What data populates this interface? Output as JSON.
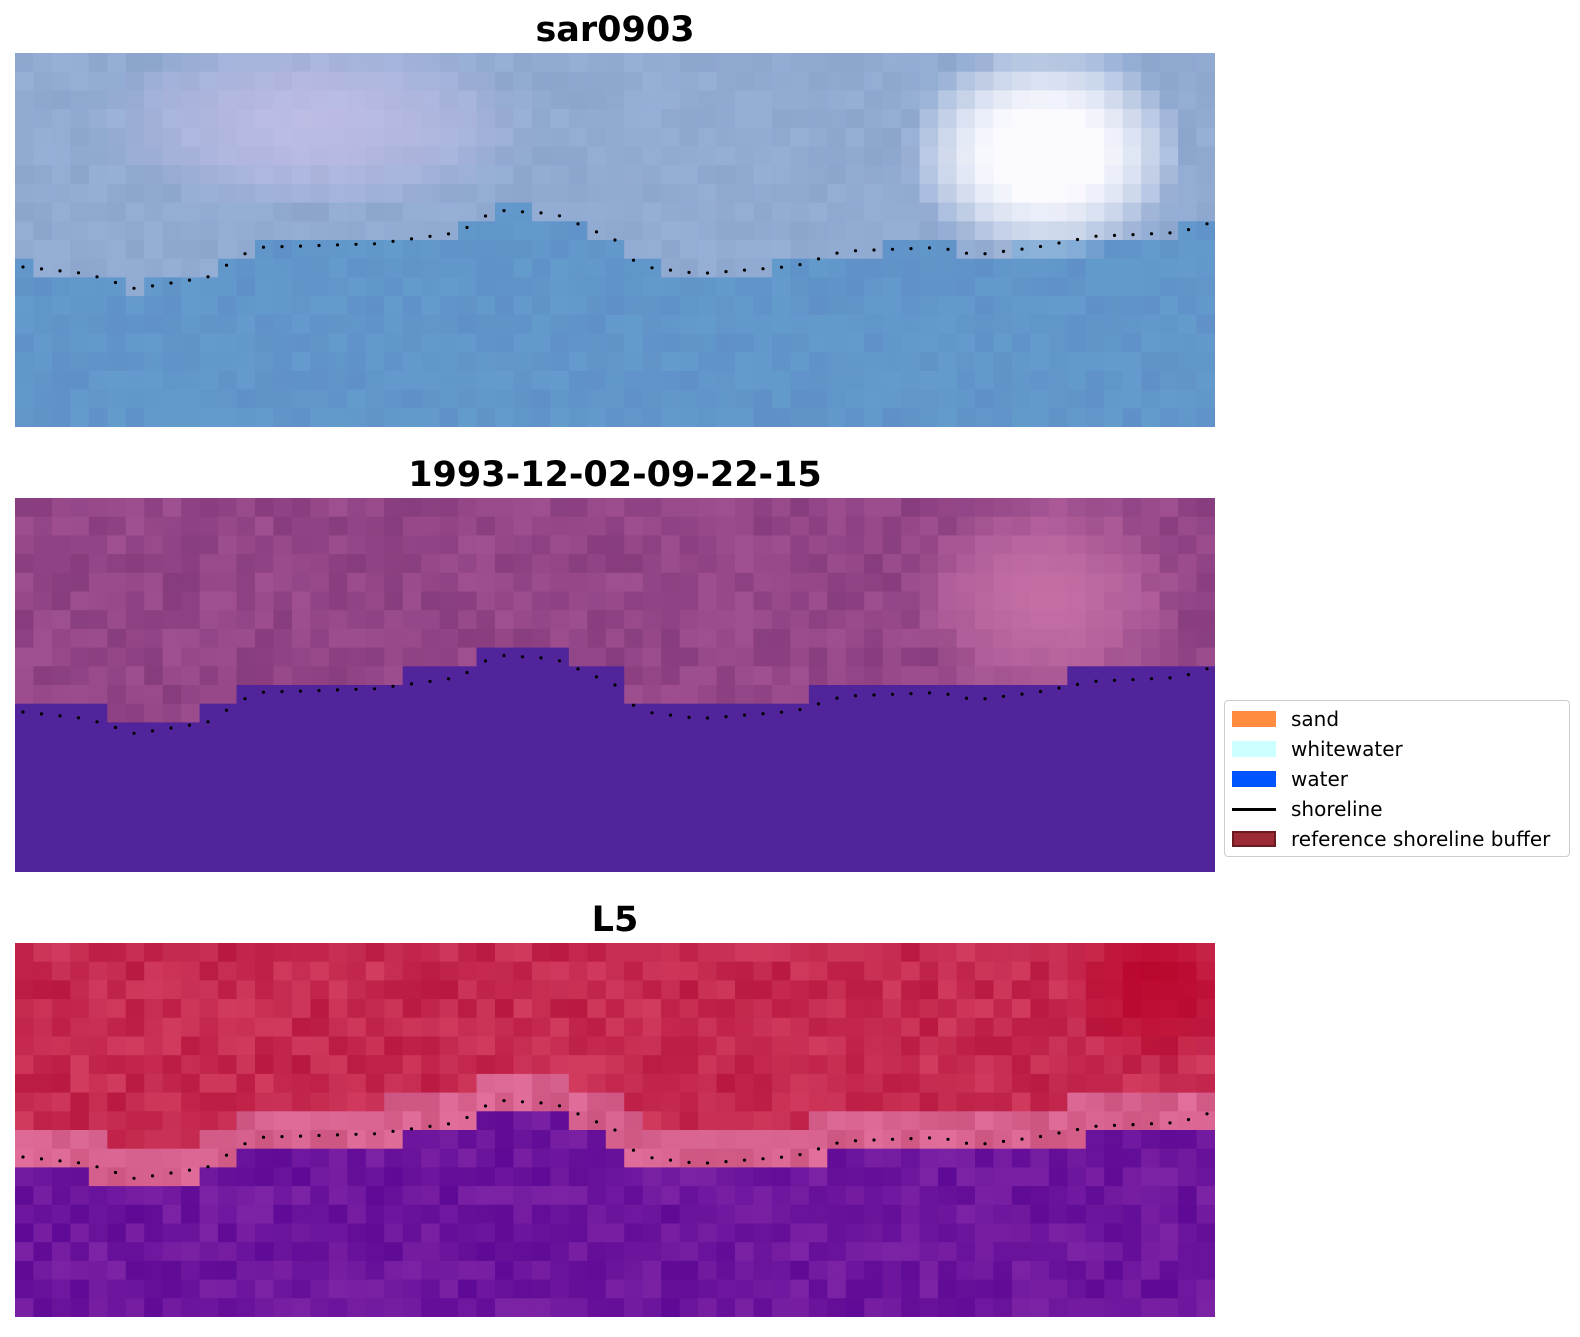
{
  "panels": [
    {
      "title": "sar0903",
      "name": "sar-image-panel",
      "scheme": "blue"
    },
    {
      "title": "1993-12-02-09-22-15",
      "name": "classified-image-panel",
      "scheme": "purple"
    },
    {
      "title": "L5",
      "name": "l5-image-panel",
      "scheme": "red"
    }
  ],
  "legend": {
    "items": [
      {
        "label": "sand",
        "kind": "patch",
        "color": "#ff8c3f",
        "icon": "sand-swatch-icon"
      },
      {
        "label": "whitewater",
        "kind": "patch",
        "color": "#ccffff",
        "icon": "whitewater-swatch-icon"
      },
      {
        "label": "water",
        "kind": "patch",
        "color": "#0055ff",
        "icon": "water-swatch-icon"
      },
      {
        "label": "shoreline",
        "kind": "line",
        "color": "#000000",
        "icon": "shoreline-line-icon"
      },
      {
        "label": "reference shoreline buffer",
        "kind": "patch",
        "color": "#9a2b35",
        "edge": "#6b1a20",
        "icon": "buffer-swatch-icon"
      }
    ]
  }
}
